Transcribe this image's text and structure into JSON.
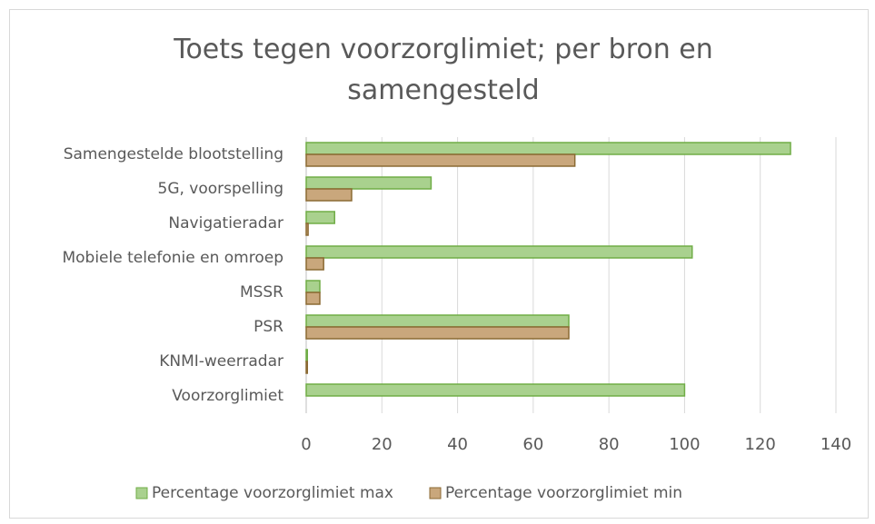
{
  "chart_data": {
    "type": "barh",
    "title": "Toets tegen voorzorglimiet; per bron en samengesteld",
    "categories": [
      "Samengestelde blootstelling",
      "5G, voorspelling",
      "Navigatieradar",
      "Mobiele telefonie en omroep",
      "MSSR",
      "PSR",
      "KNMI-weerradar",
      "Voorzorglimiet"
    ],
    "series": [
      {
        "name": "Percentage voorzorglimiet max",
        "color": "#a9d18e",
        "stroke": "#70ad47",
        "values": [
          128,
          33,
          7.5,
          102,
          3.6,
          69.4,
          0.3,
          100
        ]
      },
      {
        "name": "Percentage voorzorglimiet min",
        "color": "#c9a77c",
        "stroke": "#8b6a33",
        "values": [
          71,
          12,
          0.5,
          4.6,
          3.6,
          69.4,
          0.3,
          0
        ]
      }
    ],
    "xlim": [
      0,
      140
    ],
    "xticks": [
      0,
      20,
      40,
      60,
      80,
      100,
      120,
      140
    ],
    "grid": true,
    "legend": "bottom"
  }
}
